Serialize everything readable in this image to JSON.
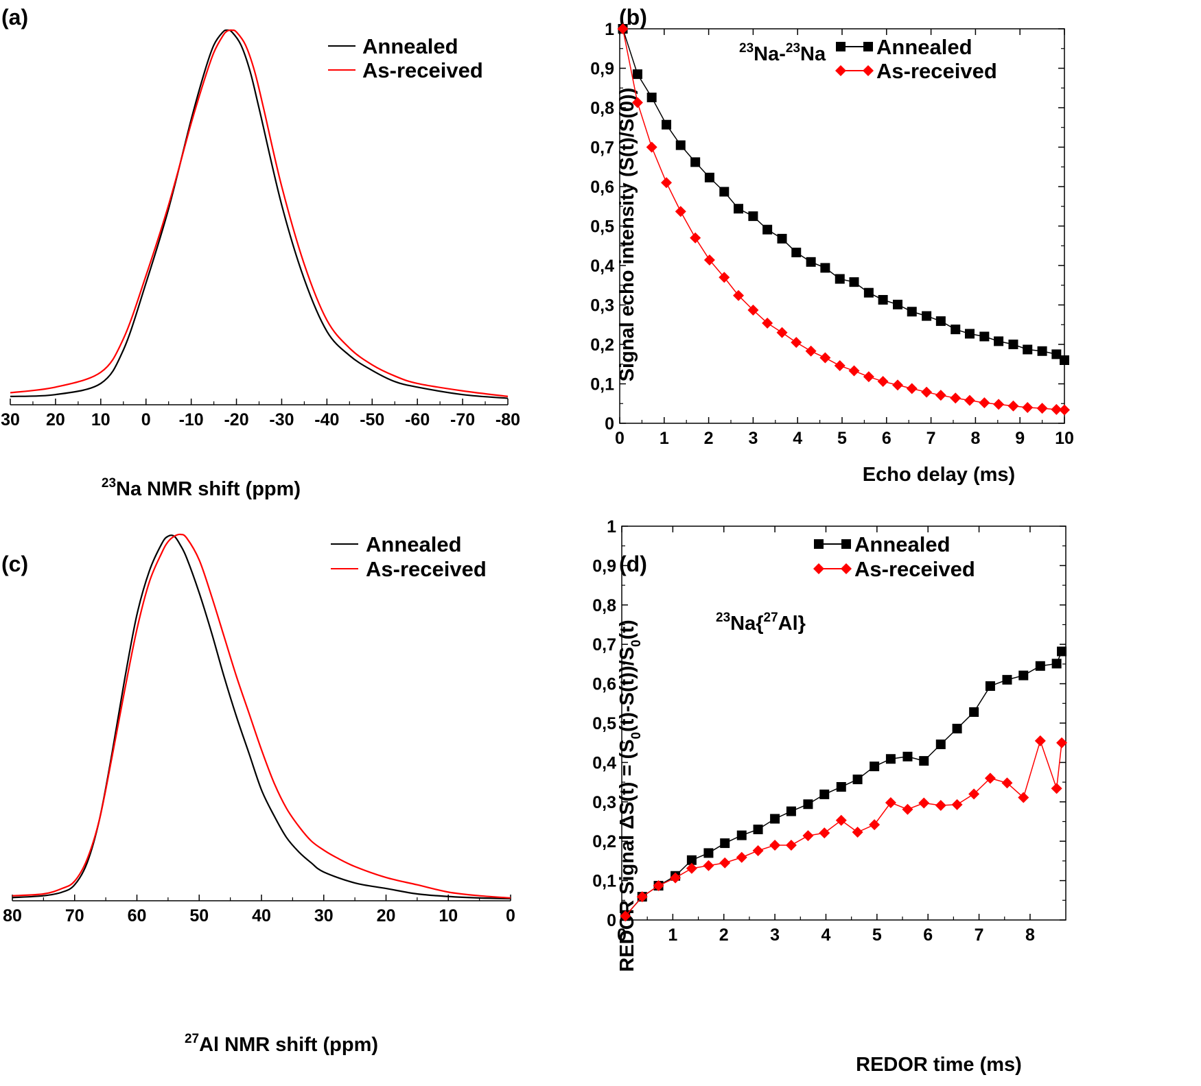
{
  "colors": {
    "annealed": "#000000",
    "as_received": "#ff0000",
    "axis": "#000000"
  },
  "chart_data": [
    {
      "id": "a",
      "panel_label": "(a)",
      "type": "line",
      "title": "",
      "xlabel_sup": "23",
      "xlabel_text": "Na NMR shift (ppm)",
      "ylabel": "",
      "xlim": [
        30,
        -80
      ],
      "ylim": [
        0,
        1
      ],
      "xticks": [
        30,
        20,
        10,
        0,
        -10,
        -20,
        -30,
        -40,
        -50,
        -60,
        -70,
        -80
      ],
      "xtick_labels": [
        "30",
        "20",
        "10",
        "0",
        "-10",
        "-20",
        "-30",
        "-40",
        "-50",
        "-60",
        "-70",
        "-80"
      ],
      "show_yticks": false,
      "legend_position": "top-right",
      "series": [
        {
          "name": "Annealed",
          "color": "#000000",
          "x": [
            30,
            20,
            10,
            5,
            0,
            -5,
            -10,
            -13,
            -15,
            -17,
            -18,
            -19,
            -21,
            -23,
            -25,
            -30,
            -35,
            -40,
            -45,
            -50,
            -55,
            -60,
            -70,
            -80
          ],
          "y": [
            0.015,
            0.02,
            0.05,
            0.14,
            0.32,
            0.52,
            0.76,
            0.89,
            0.96,
            0.995,
            1.0,
            0.995,
            0.96,
            0.89,
            0.79,
            0.53,
            0.33,
            0.19,
            0.125,
            0.085,
            0.055,
            0.04,
            0.02,
            0.01
          ]
        },
        {
          "name": "As-received",
          "color": "#ff0000",
          "x": [
            30,
            20,
            10,
            5,
            0,
            -5,
            -10,
            -13,
            -15,
            -17,
            -18,
            -19,
            -20,
            -22,
            -24,
            -26,
            -30,
            -35,
            -40,
            -45,
            -50,
            -55,
            -60,
            -70,
            -80
          ],
          "y": [
            0.025,
            0.04,
            0.08,
            0.17,
            0.34,
            0.53,
            0.75,
            0.87,
            0.94,
            0.985,
            0.998,
            1.0,
            0.995,
            0.96,
            0.89,
            0.79,
            0.58,
            0.37,
            0.22,
            0.145,
            0.1,
            0.07,
            0.05,
            0.03,
            0.015
          ]
        }
      ]
    },
    {
      "id": "b",
      "panel_label": "(b)",
      "type": "line",
      "title": "",
      "inset_parts": [
        "23",
        "Na-",
        "23",
        "Na"
      ],
      "xlabel": "Echo delay (ms)",
      "ylabel": "Signal echo intensity (S(t)/S(0))",
      "xlim": [
        0,
        10
      ],
      "ylim": [
        0,
        1
      ],
      "xticks": [
        0,
        1,
        2,
        3,
        4,
        5,
        6,
        7,
        8,
        9,
        10
      ],
      "xtick_labels": [
        "0",
        "1",
        "2",
        "3",
        "4",
        "5",
        "6",
        "7",
        "8",
        "9",
        "10"
      ],
      "yticks": [
        0,
        0.1,
        0.2,
        0.3,
        0.4,
        0.5,
        0.6,
        0.7,
        0.8,
        0.9,
        1
      ],
      "ytick_labels": [
        "0",
        "0,1",
        "0,2",
        "0,3",
        "0,4",
        "0,5",
        "0,6",
        "0,7",
        "0,8",
        "0,9",
        "1"
      ],
      "legend_position": "top-right",
      "series": [
        {
          "name": "Annealed",
          "color": "#000000",
          "marker": "square",
          "x": [
            0.07,
            0.4,
            0.72,
            1.05,
            1.37,
            1.7,
            2.02,
            2.35,
            2.67,
            3.0,
            3.32,
            3.65,
            3.97,
            4.3,
            4.62,
            4.95,
            5.27,
            5.6,
            5.92,
            6.25,
            6.57,
            6.9,
            7.22,
            7.55,
            7.87,
            8.2,
            8.52,
            8.85,
            9.17,
            9.5,
            9.82
          ],
          "y": [
            1.0,
            0.885,
            0.826,
            0.757,
            0.705,
            0.662,
            0.623,
            0.587,
            0.544,
            0.525,
            0.491,
            0.468,
            0.433,
            0.409,
            0.394,
            0.366,
            0.358,
            0.331,
            0.313,
            0.301,
            0.283,
            0.272,
            0.259,
            0.238,
            0.227,
            0.22,
            0.208,
            0.2,
            0.187,
            0.183,
            0.175
          ]
        },
        {
          "name": "As-received",
          "color": "#ff0000",
          "marker": "diamond",
          "x": [
            0.07,
            0.4,
            0.72,
            1.05,
            1.37,
            1.7,
            2.02,
            2.35,
            2.67,
            3.0,
            3.32,
            3.65,
            3.97,
            4.3,
            4.62,
            4.95,
            5.27,
            5.6,
            5.92,
            6.25,
            6.57,
            6.9,
            7.22,
            7.55,
            7.87,
            8.2,
            8.52,
            8.85,
            9.17,
            9.5,
            9.82
          ],
          "y": [
            1.0,
            0.813,
            0.7,
            0.61,
            0.537,
            0.47,
            0.414,
            0.37,
            0.324,
            0.287,
            0.254,
            0.23,
            0.205,
            0.183,
            0.166,
            0.146,
            0.133,
            0.118,
            0.106,
            0.097,
            0.088,
            0.079,
            0.071,
            0.064,
            0.058,
            0.052,
            0.048,
            0.044,
            0.04,
            0.038,
            0.035
          ]
        }
      ]
    },
    {
      "id": "c",
      "panel_label": "(c)",
      "type": "line",
      "title": "",
      "xlabel_sup": "27",
      "xlabel_text": "Al NMR shift (ppm)",
      "ylabel": "",
      "xlim": [
        80,
        0
      ],
      "ylim": [
        0,
        1
      ],
      "xticks": [
        80,
        70,
        60,
        50,
        40,
        30,
        20,
        10,
        0
      ],
      "xtick_labels": [
        "80",
        "70",
        "60",
        "50",
        "40",
        "30",
        "20",
        "10",
        "0"
      ],
      "show_yticks": false,
      "legend_position": "top-right",
      "series": [
        {
          "name": "Annealed",
          "color": "#000000",
          "x": [
            80,
            75,
            72,
            70,
            68,
            66,
            64,
            62,
            60,
            58,
            56,
            55,
            54,
            53,
            52,
            50,
            48,
            46,
            44,
            42,
            40,
            38,
            36,
            34,
            32,
            30,
            25,
            20,
            15,
            10,
            5,
            0
          ],
          "y": [
            0.005,
            0.01,
            0.02,
            0.04,
            0.1,
            0.22,
            0.4,
            0.6,
            0.78,
            0.9,
            0.975,
            0.995,
            0.995,
            0.97,
            0.935,
            0.84,
            0.73,
            0.61,
            0.5,
            0.4,
            0.3,
            0.23,
            0.17,
            0.13,
            0.1,
            0.075,
            0.045,
            0.03,
            0.015,
            0.008,
            0.004,
            0.002
          ]
        },
        {
          "name": "As-received",
          "color": "#ff0000",
          "x": [
            80,
            75,
            72,
            70,
            68,
            66,
            64,
            62,
            60,
            58,
            56,
            55,
            54,
            53,
            52,
            50,
            48,
            46,
            44,
            42,
            40,
            38,
            36,
            34,
            32,
            30,
            28,
            25,
            20,
            15,
            10,
            5,
            0
          ],
          "y": [
            0.01,
            0.015,
            0.03,
            0.05,
            0.11,
            0.22,
            0.39,
            0.57,
            0.74,
            0.87,
            0.95,
            0.98,
            0.995,
            1.0,
            0.99,
            0.93,
            0.83,
            0.72,
            0.61,
            0.51,
            0.41,
            0.32,
            0.25,
            0.2,
            0.16,
            0.135,
            0.115,
            0.09,
            0.06,
            0.04,
            0.02,
            0.01,
            0.004
          ]
        }
      ]
    },
    {
      "id": "d",
      "panel_label": "(d)",
      "type": "line",
      "title": "",
      "inset_parts": [
        "23",
        "Na{",
        "27",
        "Al}"
      ],
      "xlabel": "REDOR time (ms)",
      "ylabel_parts": [
        "REDOR Signal ΔS(t) = (S",
        "0",
        "(t)-S(t))/S",
        "0",
        "(t)"
      ],
      "xlim": [
        0,
        8.7
      ],
      "ylim": [
        0,
        1
      ],
      "xticks": [
        0,
        1,
        2,
        3,
        4,
        5,
        6,
        7,
        8
      ],
      "xtick_labels": [
        "0",
        "1",
        "2",
        "3",
        "4",
        "5",
        "6",
        "7",
        "8"
      ],
      "yticks": [
        0,
        0.1,
        0.2,
        0.3,
        0.4,
        0.5,
        0.6,
        0.7,
        0.8,
        0.9,
        1
      ],
      "ytick_labels": [
        "0",
        "0,1",
        "0,2",
        "0,3",
        "0,4",
        "0,5",
        "0,6",
        "0,7",
        "0,8",
        "0,9",
        "1"
      ],
      "legend_position": "top-right",
      "series": [
        {
          "name": "Annealed",
          "color": "#000000",
          "marker": "square",
          "x": [
            0.07,
            0.4,
            0.72,
            1.05,
            1.37,
            1.7,
            2.02,
            2.35,
            2.67,
            3.0,
            3.32,
            3.65,
            3.97,
            4.3,
            4.62,
            4.95,
            5.27,
            5.6,
            5.92,
            6.25,
            6.57,
            6.9,
            7.22,
            7.55,
            7.87,
            8.2,
            8.52
          ],
          "y": [
            0.01,
            0.059,
            0.087,
            0.112,
            0.152,
            0.17,
            0.195,
            0.215,
            0.23,
            0.257,
            0.276,
            0.294,
            0.319,
            0.338,
            0.357,
            0.39,
            0.409,
            0.415,
            0.404,
            0.446,
            0.486,
            0.528,
            0.594,
            0.61,
            0.621,
            0.645,
            0.651
          ]
        },
        {
          "name": "As-received",
          "color": "#ff0000",
          "marker": "diamond",
          "x": [
            0.07,
            0.4,
            0.72,
            1.05,
            1.37,
            1.7,
            2.02,
            2.35,
            2.67,
            3.0,
            3.32,
            3.65,
            3.97,
            4.3,
            4.62,
            4.95,
            5.27,
            5.6,
            5.92,
            6.25,
            6.57,
            6.9,
            7.22,
            7.55,
            7.87,
            8.2,
            8.52
          ],
          "y": [
            0.01,
            0.059,
            0.087,
            0.107,
            0.131,
            0.138,
            0.145,
            0.159,
            0.176,
            0.19,
            0.19,
            0.214,
            0.221,
            0.253,
            0.223,
            0.242,
            0.298,
            0.281,
            0.297,
            0.291,
            0.293,
            0.32,
            0.36,
            0.348,
            0.311,
            0.455,
            0.334
          ]
        }
      ]
    }
  ],
  "extra_points": {
    "d_annealed_last": {
      "x": 8.62,
      "y": 0.682
    },
    "d_as_received_last": {
      "x": 8.62,
      "y": 0.45
    }
  }
}
